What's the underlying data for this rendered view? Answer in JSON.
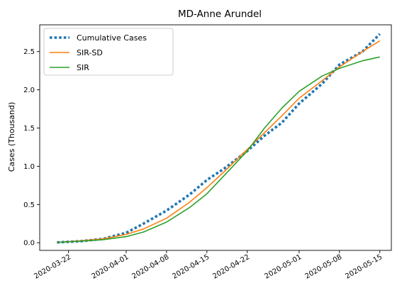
{
  "chart_data": {
    "type": "line",
    "title": "MD-Anne Arundel",
    "xlabel": "",
    "ylabel": "Cases (Thousand)",
    "x_ticks": [
      "2020-03-22",
      "2020-04-01",
      "2020-04-08",
      "2020-04-15",
      "2020-04-22",
      "2020-05-01",
      "2020-05-08",
      "2020-05-15"
    ],
    "y_ticks": [
      "0.0",
      "0.5",
      "1.0",
      "1.5",
      "2.0",
      "2.5"
    ],
    "xlim": [
      "2020-03-17",
      "2020-05-17"
    ],
    "ylim": [
      -0.1,
      2.85
    ],
    "legend_position": "upper-left",
    "grid": false,
    "series": [
      {
        "name": "Cumulative Cases",
        "color": "#1f77b4",
        "style": "dotted",
        "points": [
          [
            "2020-03-20",
            0.005
          ],
          [
            "2020-03-24",
            0.02
          ],
          [
            "2020-03-28",
            0.05
          ],
          [
            "2020-04-01",
            0.13
          ],
          [
            "2020-04-04",
            0.25
          ],
          [
            "2020-04-08",
            0.42
          ],
          [
            "2020-04-12",
            0.63
          ],
          [
            "2020-04-15",
            0.82
          ],
          [
            "2020-04-18",
            0.97
          ],
          [
            "2020-04-22",
            1.2
          ],
          [
            "2020-04-25",
            1.4
          ],
          [
            "2020-04-28",
            1.57
          ],
          [
            "2020-05-01",
            1.82
          ],
          [
            "2020-05-05",
            2.08
          ],
          [
            "2020-05-08",
            2.33
          ],
          [
            "2020-05-12",
            2.5
          ],
          [
            "2020-05-15",
            2.73
          ]
        ]
      },
      {
        "name": "SIR-SD",
        "color": "#ff7f0e",
        "style": "solid",
        "points": [
          [
            "2020-03-20",
            0.005
          ],
          [
            "2020-03-24",
            0.025
          ],
          [
            "2020-03-28",
            0.05
          ],
          [
            "2020-04-01",
            0.11
          ],
          [
            "2020-04-04",
            0.18
          ],
          [
            "2020-04-08",
            0.32
          ],
          [
            "2020-04-12",
            0.53
          ],
          [
            "2020-04-15",
            0.72
          ],
          [
            "2020-04-18",
            0.93
          ],
          [
            "2020-04-22",
            1.22
          ],
          [
            "2020-04-25",
            1.44
          ],
          [
            "2020-04-28",
            1.66
          ],
          [
            "2020-05-01",
            1.89
          ],
          [
            "2020-05-05",
            2.12
          ],
          [
            "2020-05-08",
            2.3
          ],
          [
            "2020-05-12",
            2.5
          ],
          [
            "2020-05-15",
            2.64
          ]
        ]
      },
      {
        "name": "SIR",
        "color": "#2ca02c",
        "style": "solid",
        "points": [
          [
            "2020-03-20",
            0.005
          ],
          [
            "2020-03-24",
            0.02
          ],
          [
            "2020-03-28",
            0.04
          ],
          [
            "2020-04-01",
            0.08
          ],
          [
            "2020-04-04",
            0.14
          ],
          [
            "2020-04-08",
            0.27
          ],
          [
            "2020-04-12",
            0.46
          ],
          [
            "2020-04-15",
            0.64
          ],
          [
            "2020-04-18",
            0.88
          ],
          [
            "2020-04-22",
            1.2
          ],
          [
            "2020-04-25",
            1.5
          ],
          [
            "2020-04-28",
            1.76
          ],
          [
            "2020-05-01",
            1.98
          ],
          [
            "2020-05-05",
            2.18
          ],
          [
            "2020-05-08",
            2.28
          ],
          [
            "2020-05-12",
            2.38
          ],
          [
            "2020-05-15",
            2.43
          ]
        ]
      }
    ]
  }
}
